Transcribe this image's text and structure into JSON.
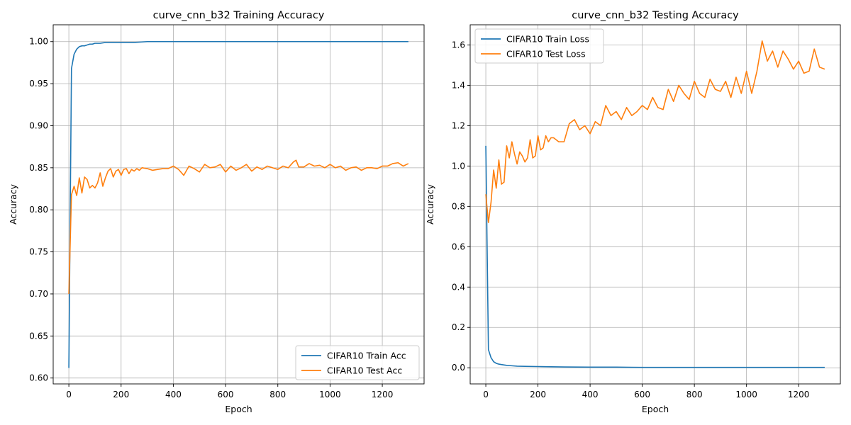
{
  "chart_data": [
    {
      "type": "line",
      "title": "curve_cnn_b32 Training Accuracy",
      "xlabel": "Epoch",
      "ylabel": "Accuracy",
      "xlim": [
        -60,
        1360
      ],
      "ylim": [
        0.593,
        1.02
      ],
      "xticks": [
        0,
        200,
        400,
        600,
        800,
        1000,
        1200
      ],
      "yticks": [
        0.6,
        0.65,
        0.7,
        0.75,
        0.8,
        0.85,
        0.9,
        0.95,
        1.0
      ],
      "ytick_decimals": 2,
      "grid": true,
      "legend": "lower-right",
      "series": [
        {
          "name": "CIFAR10 Train Acc",
          "color": "#1f77b4",
          "x": [
            0,
            10,
            20,
            30,
            40,
            50,
            60,
            70,
            80,
            90,
            100,
            120,
            140,
            160,
            200,
            250,
            300,
            350,
            400,
            500,
            600,
            700,
            800,
            900,
            1000,
            1100,
            1200,
            1300
          ],
          "y": [
            0.612,
            0.968,
            0.985,
            0.991,
            0.994,
            0.995,
            0.995,
            0.996,
            0.997,
            0.997,
            0.998,
            0.998,
            0.999,
            0.999,
            0.999,
            0.999,
            1.0,
            1.0,
            1.0,
            1.0,
            1.0,
            1.0,
            1.0,
            1.0,
            1.0,
            1.0,
            1.0,
            1.0
          ]
        },
        {
          "name": "CIFAR10 Test Acc",
          "color": "#ff7f0e",
          "x": [
            0,
            10,
            20,
            30,
            40,
            50,
            60,
            70,
            80,
            90,
            100,
            110,
            120,
            130,
            140,
            150,
            160,
            170,
            180,
            190,
            200,
            210,
            220,
            230,
            240,
            250,
            260,
            270,
            280,
            300,
            320,
            340,
            360,
            380,
            400,
            420,
            440,
            460,
            480,
            500,
            520,
            540,
            560,
            580,
            600,
            620,
            640,
            660,
            680,
            700,
            720,
            740,
            760,
            780,
            800,
            820,
            840,
            860,
            870,
            880,
            900,
            920,
            940,
            960,
            980,
            1000,
            1020,
            1040,
            1060,
            1080,
            1100,
            1120,
            1140,
            1160,
            1180,
            1200,
            1220,
            1240,
            1260,
            1280,
            1300
          ],
          "y": [
            0.7,
            0.818,
            0.828,
            0.817,
            0.838,
            0.82,
            0.839,
            0.836,
            0.826,
            0.829,
            0.826,
            0.832,
            0.844,
            0.828,
            0.838,
            0.846,
            0.849,
            0.839,
            0.846,
            0.848,
            0.841,
            0.848,
            0.849,
            0.843,
            0.848,
            0.846,
            0.849,
            0.847,
            0.85,
            0.849,
            0.847,
            0.848,
            0.849,
            0.849,
            0.852,
            0.848,
            0.841,
            0.852,
            0.849,
            0.845,
            0.854,
            0.85,
            0.851,
            0.854,
            0.845,
            0.852,
            0.847,
            0.85,
            0.854,
            0.846,
            0.851,
            0.848,
            0.852,
            0.85,
            0.848,
            0.852,
            0.85,
            0.857,
            0.859,
            0.851,
            0.851,
            0.855,
            0.852,
            0.853,
            0.85,
            0.854,
            0.85,
            0.852,
            0.847,
            0.85,
            0.851,
            0.847,
            0.85,
            0.85,
            0.849,
            0.852,
            0.852,
            0.855,
            0.856,
            0.852,
            0.855
          ]
        }
      ]
    },
    {
      "type": "line",
      "title": "curve_cnn_b32 Testing Accuracy",
      "xlabel": "Epoch",
      "ylabel": "Accuracy",
      "xlim": [
        -60,
        1360
      ],
      "ylim": [
        -0.08,
        1.7
      ],
      "xticks": [
        0,
        200,
        400,
        600,
        800,
        1000,
        1200
      ],
      "yticks": [
        0.0,
        0.2,
        0.4,
        0.6,
        0.8,
        1.0,
        1.2,
        1.4,
        1.6
      ],
      "ytick_decimals": 1,
      "grid": true,
      "legend": "upper-left",
      "series": [
        {
          "name": "CIFAR10 Train Loss",
          "color": "#1f77b4",
          "x": [
            0,
            10,
            20,
            30,
            40,
            50,
            60,
            80,
            100,
            120,
            150,
            200,
            250,
            300,
            400,
            500,
            600,
            700,
            800,
            900,
            1000,
            1100,
            1200,
            1300
          ],
          "y": [
            1.1,
            0.09,
            0.05,
            0.03,
            0.022,
            0.018,
            0.016,
            0.012,
            0.01,
            0.008,
            0.007,
            0.006,
            0.005,
            0.004,
            0.003,
            0.003,
            0.002,
            0.002,
            0.002,
            0.002,
            0.002,
            0.002,
            0.002,
            0.002
          ]
        },
        {
          "name": "CIFAR10 Test Loss",
          "color": "#ff7f0e",
          "x": [
            0,
            10,
            20,
            30,
            40,
            50,
            60,
            70,
            80,
            90,
            100,
            110,
            120,
            130,
            140,
            150,
            160,
            170,
            180,
            190,
            200,
            210,
            220,
            230,
            240,
            250,
            260,
            280,
            300,
            320,
            340,
            360,
            380,
            400,
            420,
            440,
            460,
            480,
            500,
            520,
            540,
            560,
            580,
            600,
            620,
            640,
            660,
            680,
            700,
            720,
            740,
            760,
            780,
            800,
            820,
            840,
            860,
            880,
            900,
            920,
            940,
            960,
            980,
            1000,
            1020,
            1040,
            1060,
            1080,
            1100,
            1120,
            1140,
            1160,
            1180,
            1200,
            1220,
            1240,
            1260,
            1280,
            1300
          ],
          "y": [
            0.86,
            0.72,
            0.82,
            0.98,
            0.89,
            1.03,
            0.91,
            0.92,
            1.1,
            1.04,
            1.12,
            1.06,
            1.01,
            1.07,
            1.05,
            1.02,
            1.04,
            1.13,
            1.04,
            1.05,
            1.15,
            1.08,
            1.09,
            1.15,
            1.12,
            1.14,
            1.14,
            1.12,
            1.12,
            1.21,
            1.23,
            1.18,
            1.2,
            1.16,
            1.22,
            1.2,
            1.3,
            1.25,
            1.27,
            1.23,
            1.29,
            1.25,
            1.27,
            1.3,
            1.28,
            1.34,
            1.29,
            1.28,
            1.38,
            1.32,
            1.4,
            1.36,
            1.33,
            1.42,
            1.36,
            1.34,
            1.43,
            1.38,
            1.37,
            1.42,
            1.34,
            1.44,
            1.36,
            1.47,
            1.36,
            1.47,
            1.62,
            1.52,
            1.57,
            1.49,
            1.57,
            1.53,
            1.48,
            1.52,
            1.46,
            1.47,
            1.58,
            1.49,
            1.48
          ]
        }
      ]
    }
  ]
}
